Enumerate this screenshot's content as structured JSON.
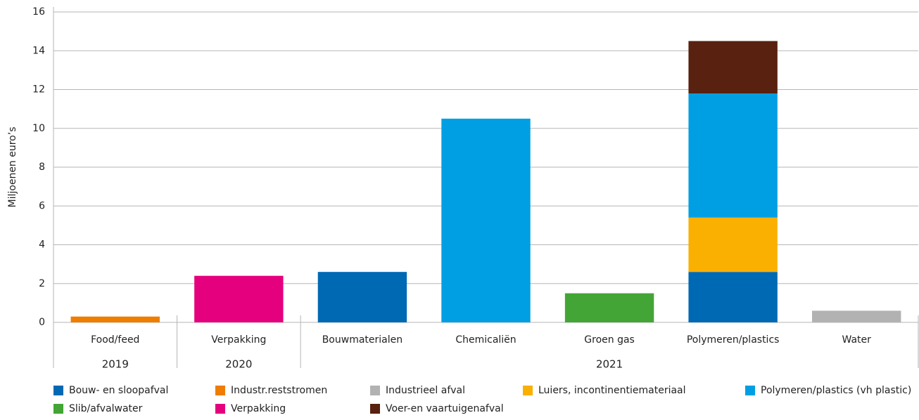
{
  "chart_data": {
    "type": "stacked_bar",
    "y_label": "Miljoenen euro’s",
    "categories": [
      "Food/feed",
      "Verpakking",
      "Bouwmaterialen",
      "Chemicaliën",
      "Groen gas",
      "Polymeren/plastics",
      "Water"
    ],
    "groups": [
      {
        "label": "2019",
        "count": 1
      },
      {
        "label": "2020",
        "count": 1
      },
      {
        "label": "2021",
        "count": 5
      }
    ],
    "series": [
      {
        "name": "Bouw- en sloopafval",
        "color": "#0069b4",
        "values": [
          null,
          null,
          2.6,
          null,
          null,
          2.6,
          null
        ]
      },
      {
        "name": "Industr.reststromen",
        "color": "#ef7d00",
        "values": [
          0.3,
          null,
          null,
          null,
          null,
          null,
          null
        ]
      },
      {
        "name": "Industrieel afval",
        "color": "#b2b2b2",
        "values": [
          null,
          null,
          null,
          null,
          null,
          null,
          0.6
        ]
      },
      {
        "name": "Luiers, incontinentiemateriaal",
        "color": "#f9b000",
        "values": [
          null,
          null,
          null,
          null,
          null,
          2.8,
          null
        ]
      },
      {
        "name": "Polymeren/plastics (vh plastic)",
        "color": "#009fe3",
        "values": [
          null,
          null,
          null,
          10.5,
          null,
          6.4,
          null
        ]
      },
      {
        "name": "Slib/afvalwater",
        "color": "#43a535",
        "values": [
          null,
          null,
          null,
          null,
          1.5,
          null,
          null
        ]
      },
      {
        "name": "Verpakking",
        "color": "#e5007d",
        "values": [
          null,
          2.4,
          null,
          null,
          null,
          null,
          null
        ]
      },
      {
        "name": "Voer-en vaartuigenafval",
        "color": "#582110",
        "values": [
          null,
          null,
          null,
          null,
          null,
          2.7,
          null
        ]
      }
    ],
    "ylim": [
      0,
      16
    ],
    "yticks": [
      0,
      2,
      4,
      6,
      8,
      10,
      12,
      14,
      16
    ],
    "grid": true,
    "legend": "bottom"
  }
}
